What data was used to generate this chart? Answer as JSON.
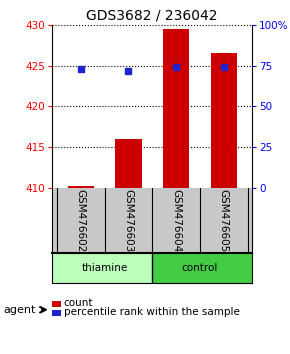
{
  "title": "GDS3682 / 236042",
  "samples": [
    "GSM476602",
    "GSM476603",
    "GSM476604",
    "GSM476605"
  ],
  "count_values": [
    410.3,
    416.0,
    429.5,
    426.5
  ],
  "percentile_values": [
    73.0,
    72.0,
    74.0,
    74.0
  ],
  "ylim_left": [
    410,
    430
  ],
  "ylim_right": [
    0,
    100
  ],
  "yticks_left": [
    410,
    415,
    420,
    425,
    430
  ],
  "yticks_right": [
    0,
    25,
    50,
    75,
    100
  ],
  "ytick_labels_right": [
    "0",
    "25",
    "50",
    "75",
    "100%"
  ],
  "bar_color": "#cc0000",
  "marker_color": "#2222cc",
  "bar_width": 0.55,
  "agent_label": "agent",
  "legend_count": "count",
  "legend_percentile": "percentile rank within the sample",
  "background_plot": "#ffffff",
  "background_label": "#c8c8c8",
  "background_group_thiamine": "#bbffbb",
  "background_group_control": "#44cc44",
  "title_fontsize": 10,
  "tick_fontsize": 7.5,
  "label_fontsize": 7.5
}
